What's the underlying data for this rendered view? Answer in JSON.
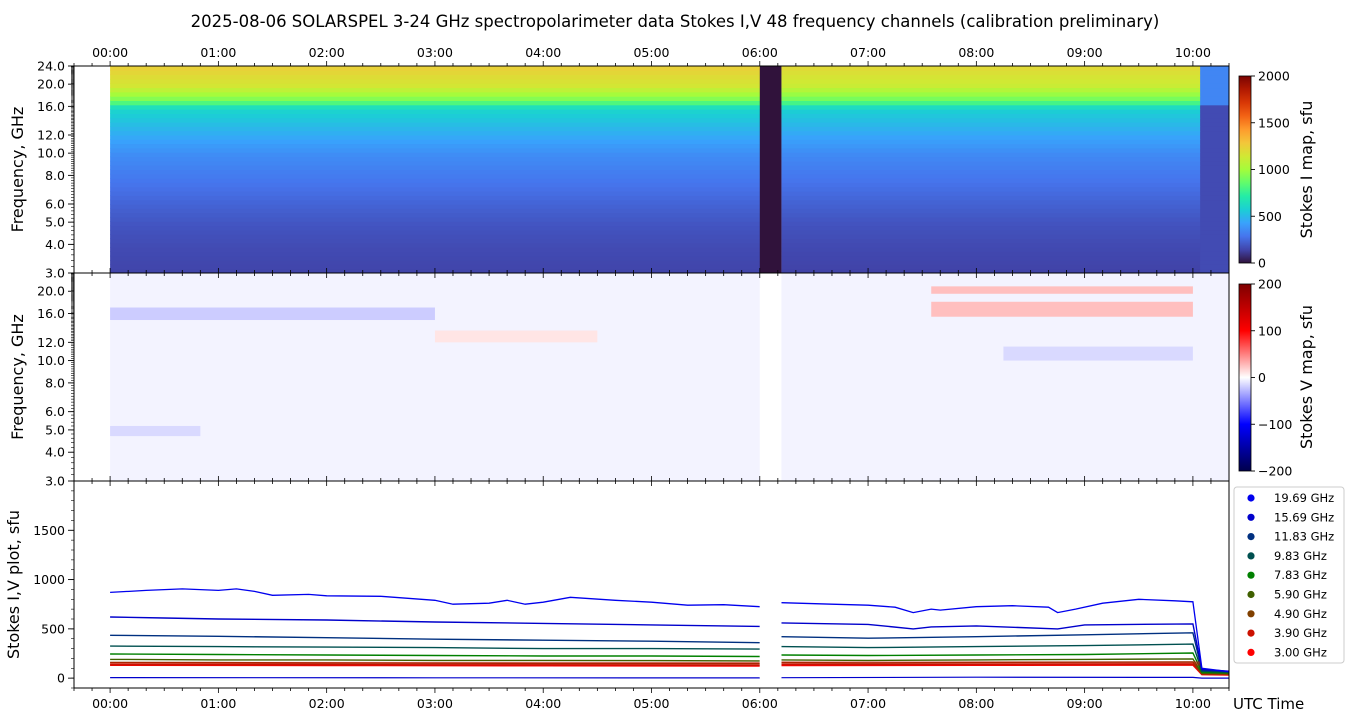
{
  "title": "2025-08-06  SOLARSPEL  3-24 GHz spectropolarimeter data   Stokes I,V   48 frequency channels   (calibration preliminary)",
  "colors": {
    "stokes_i_colormap": [
      "#30123b",
      "#4145ab",
      "#4675ed",
      "#39a2fc",
      "#1bcfd4",
      "#24eca6",
      "#61fc6c",
      "#a4fc3b",
      "#d1e834",
      "#f3c63a",
      "#fe9b2d",
      "#f36315",
      "#d93806",
      "#b11901",
      "#7a0402"
    ],
    "stokes_v_colormap": [
      "#00004c",
      "#0000ff",
      "#ffffff",
      "#ff0000",
      "#7f0000"
    ]
  },
  "chart_data": [
    {
      "type": "heatmap",
      "name": "stokes-i-map",
      "ylabel": "Frequency, GHz",
      "x_axis": "time",
      "x_range": [
        "-00:20",
        "10:20"
      ],
      "x_ticks": [
        "00:00",
        "01:00",
        "02:00",
        "03:00",
        "04:00",
        "05:00",
        "06:00",
        "07:00",
        "08:00",
        "09:00",
        "10:00"
      ],
      "x_tick_position": "top",
      "y_scale": "log",
      "ylim": [
        3.0,
        24.0
      ],
      "y_ticks": [
        "3.0",
        "4.0",
        "5.0",
        "6.0",
        "8.0",
        "10.0",
        "12.0",
        "16.0",
        "20.0",
        "24.0"
      ],
      "colorbar": {
        "label": "Stokes I map, sfu",
        "range": [
          0,
          2000
        ],
        "ticks": [
          "0",
          "500",
          "1000",
          "1500",
          "2000"
        ]
      },
      "data_start": "00:00",
      "data_end": "10:20",
      "gap": [
        "06:00",
        "06:12"
      ],
      "calibration_drop": "10:04",
      "spectrum_profile": [
        {
          "freq_ghz": 3.0,
          "sfu": 140
        },
        {
          "freq_ghz": 3.9,
          "sfu": 160
        },
        {
          "freq_ghz": 4.9,
          "sfu": 190
        },
        {
          "freq_ghz": 5.9,
          "sfu": 230
        },
        {
          "freq_ghz": 7.83,
          "sfu": 300
        },
        {
          "freq_ghz": 9.83,
          "sfu": 360
        },
        {
          "freq_ghz": 11.83,
          "sfu": 450
        },
        {
          "freq_ghz": 15.69,
          "sfu": 600
        },
        {
          "freq_ghz": 17.0,
          "sfu": 900
        },
        {
          "freq_ghz": 19.69,
          "sfu": 1150
        },
        {
          "freq_ghz": 24.0,
          "sfu": 1250
        }
      ]
    },
    {
      "type": "heatmap",
      "name": "stokes-v-map",
      "ylabel": "Frequency, GHz",
      "x_axis": "time",
      "x_range": [
        "-00:20",
        "10:20"
      ],
      "y_scale": "log",
      "ylim": [
        3.0,
        24.0
      ],
      "y_ticks": [
        "3.0",
        "4.0",
        "5.0",
        "6.0",
        "8.0",
        "10.0",
        "12.0",
        "16.0",
        "20.0"
      ],
      "colorbar": {
        "label": "Stokes V map, sfu",
        "range": [
          -200,
          200
        ],
        "ticks": [
          "-200",
          "-100",
          "0",
          "100",
          "200"
        ]
      },
      "features": [
        {
          "t0": "07:35",
          "t1": "10:00",
          "f0": 15.5,
          "f1": 18.0,
          "sfu": 25
        },
        {
          "t0": "07:35",
          "t1": "10:00",
          "f0": 19.5,
          "f1": 21.0,
          "sfu": 25
        },
        {
          "t0": "00:00",
          "t1": "03:00",
          "f0": 15.0,
          "f1": 17.0,
          "sfu": -20
        },
        {
          "t0": "08:15",
          "t1": "10:00",
          "f0": 10.0,
          "f1": 11.5,
          "sfu": -15
        },
        {
          "t0": "00:00",
          "t1": "00:50",
          "f0": 4.7,
          "f1": 5.2,
          "sfu": -15
        },
        {
          "t0": "03:00",
          "t1": "04:30",
          "f0": 12.0,
          "f1": 13.5,
          "sfu": 10
        }
      ]
    },
    {
      "type": "line",
      "name": "stokes-iv-plot",
      "ylabel": "Stokes I,V plot, sfu",
      "xlabel": "UTC Time",
      "x_range": [
        "-00:20",
        "10:20"
      ],
      "x_ticks": [
        "00:00",
        "01:00",
        "02:00",
        "03:00",
        "04:00",
        "05:00",
        "06:00",
        "07:00",
        "08:00",
        "09:00",
        "10:00"
      ],
      "ylim": [
        -100,
        2000
      ],
      "y_ticks": [
        "0",
        "500",
        "1000",
        "1500"
      ],
      "legend_position": "right",
      "series": [
        {
          "name": "19.69 GHz",
          "color": "#0000ee",
          "points": [
            [
              "00:00",
              870
            ],
            [
              "00:20",
              890
            ],
            [
              "00:40",
              905
            ],
            [
              "01:00",
              890
            ],
            [
              "01:10",
              905
            ],
            [
              "01:20",
              880
            ],
            [
              "01:30",
              840
            ],
            [
              "01:50",
              850
            ],
            [
              "02:00",
              835
            ],
            [
              "02:30",
              830
            ],
            [
              "03:00",
              790
            ],
            [
              "03:10",
              750
            ],
            [
              "03:30",
              760
            ],
            [
              "03:40",
              790
            ],
            [
              "03:50",
              750
            ],
            [
              "04:00",
              770
            ],
            [
              "04:15",
              820
            ],
            [
              "04:40",
              790
            ],
            [
              "05:00",
              770
            ],
            [
              "05:20",
              740
            ],
            [
              "05:40",
              745
            ],
            [
              "06:00",
              725
            ],
            [
              "06:12",
              765
            ],
            [
              "06:40",
              750
            ],
            [
              "07:00",
              740
            ],
            [
              "07:15",
              720
            ],
            [
              "07:25",
              665
            ],
            [
              "07:35",
              700
            ],
            [
              "07:40",
              690
            ],
            [
              "08:00",
              725
            ],
            [
              "08:20",
              735
            ],
            [
              "08:40",
              720
            ],
            [
              "08:45",
              665
            ],
            [
              "08:55",
              700
            ],
            [
              "09:10",
              760
            ],
            [
              "09:30",
              800
            ],
            [
              "09:50",
              785
            ],
            [
              "10:00",
              775
            ],
            [
              "10:05",
              100
            ],
            [
              "10:20",
              65
            ]
          ]
        },
        {
          "name": "15.69 GHz",
          "color": "#0000cc",
          "points": [
            [
              "00:00",
              620
            ],
            [
              "00:30",
              610
            ],
            [
              "01:00",
              600
            ],
            [
              "02:00",
              590
            ],
            [
              "03:00",
              570
            ],
            [
              "04:00",
              555
            ],
            [
              "05:00",
              540
            ],
            [
              "06:00",
              525
            ],
            [
              "06:12",
              560
            ],
            [
              "07:00",
              545
            ],
            [
              "07:25",
              500
            ],
            [
              "07:35",
              520
            ],
            [
              "08:00",
              530
            ],
            [
              "08:45",
              500
            ],
            [
              "09:00",
              540
            ],
            [
              "10:00",
              550
            ],
            [
              "10:05",
              90
            ],
            [
              "10:20",
              70
            ]
          ]
        },
        {
          "name": "11.83 GHz",
          "color": "#003080",
          "points": [
            [
              "00:00",
              435
            ],
            [
              "01:00",
              425
            ],
            [
              "02:00",
              410
            ],
            [
              "03:00",
              395
            ],
            [
              "04:00",
              385
            ],
            [
              "05:00",
              375
            ],
            [
              "06:00",
              360
            ],
            [
              "06:12",
              420
            ],
            [
              "07:00",
              405
            ],
            [
              "08:00",
              420
            ],
            [
              "09:00",
              440
            ],
            [
              "10:00",
              460
            ],
            [
              "10:05",
              80
            ],
            [
              "10:20",
              65
            ]
          ]
        },
        {
          "name": "9.83 GHz",
          "color": "#005050",
          "points": [
            [
              "00:00",
              325
            ],
            [
              "01:00",
              320
            ],
            [
              "02:00",
              315
            ],
            [
              "03:00",
              310
            ],
            [
              "04:00",
              300
            ],
            [
              "05:00",
              300
            ],
            [
              "06:00",
              295
            ],
            [
              "06:12",
              320
            ],
            [
              "07:00",
              310
            ],
            [
              "08:00",
              320
            ],
            [
              "09:00",
              330
            ],
            [
              "10:00",
              345
            ],
            [
              "10:05",
              70
            ],
            [
              "10:20",
              60
            ]
          ]
        },
        {
          "name": "7.83 GHz",
          "color": "#008000",
          "points": [
            [
              "00:00",
              245
            ],
            [
              "01:00",
              240
            ],
            [
              "02:00",
              235
            ],
            [
              "03:00",
              230
            ],
            [
              "04:00",
              225
            ],
            [
              "05:00",
              225
            ],
            [
              "06:00",
              220
            ],
            [
              "06:12",
              235
            ],
            [
              "07:00",
              230
            ],
            [
              "08:00",
              235
            ],
            [
              "09:00",
              240
            ],
            [
              "10:00",
              255
            ],
            [
              "10:05",
              60
            ],
            [
              "10:20",
              55
            ]
          ]
        },
        {
          "name": "5.90 GHz",
          "color": "#406000",
          "points": [
            [
              "00:00",
              190
            ],
            [
              "01:00",
              185
            ],
            [
              "02:00",
              185
            ],
            [
              "03:00",
              180
            ],
            [
              "04:00",
              180
            ],
            [
              "05:00",
              178
            ],
            [
              "06:00",
              175
            ],
            [
              "06:12",
              185
            ],
            [
              "07:00",
              180
            ],
            [
              "08:00",
              185
            ],
            [
              "09:00",
              190
            ],
            [
              "10:00",
              195
            ],
            [
              "10:05",
              50
            ],
            [
              "10:20",
              48
            ]
          ]
        },
        {
          "name": "4.90 GHz",
          "color": "#804000",
          "points": [
            [
              "00:00",
              160
            ],
            [
              "01:00",
              158
            ],
            [
              "02:00",
              155
            ],
            [
              "03:00",
              152
            ],
            [
              "04:00",
              150
            ],
            [
              "05:00",
              150
            ],
            [
              "06:00",
              148
            ],
            [
              "06:12",
              160
            ],
            [
              "07:00",
              155
            ],
            [
              "08:00",
              160
            ],
            [
              "09:00",
              162
            ],
            [
              "10:00",
              165
            ],
            [
              "10:05",
              45
            ],
            [
              "10:20",
              42
            ]
          ]
        },
        {
          "name": "3.90 GHz",
          "color": "#cc1100",
          "points": [
            [
              "00:00",
              140
            ],
            [
              "01:00",
              140
            ],
            [
              "02:00",
              138
            ],
            [
              "03:00",
              135
            ],
            [
              "04:00",
              135
            ],
            [
              "05:00",
              133
            ],
            [
              "06:00",
              130
            ],
            [
              "06:12",
              140
            ],
            [
              "07:00",
              138
            ],
            [
              "08:00",
              140
            ],
            [
              "09:00",
              142
            ],
            [
              "10:00",
              145
            ],
            [
              "10:05",
              40
            ],
            [
              "10:20",
              38
            ]
          ]
        },
        {
          "name": "3.00 GHz",
          "color": "#ff0000",
          "points": [
            [
              "00:00",
              130
            ],
            [
              "02:00",
              128
            ],
            [
              "04:00",
              125
            ],
            [
              "06:00",
              122
            ],
            [
              "06:12",
              128
            ],
            [
              "08:00",
              130
            ],
            [
              "10:00",
              132
            ],
            [
              "10:05",
              35
            ],
            [
              "10:20",
              32
            ]
          ]
        }
      ],
      "v_series": {
        "color": "#0000cc",
        "points": [
          [
            "00:00",
            5
          ],
          [
            "03:00",
            3
          ],
          [
            "06:00",
            2
          ],
          [
            "06:12",
            4
          ],
          [
            "08:00",
            10
          ],
          [
            "10:00",
            8
          ],
          [
            "10:05",
            0
          ],
          [
            "10:20",
            0
          ]
        ]
      }
    }
  ]
}
